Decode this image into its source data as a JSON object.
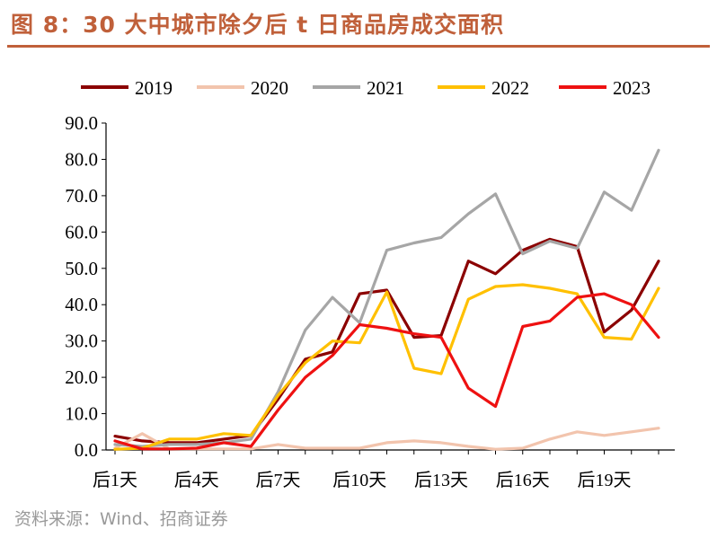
{
  "header": {
    "title": "图 8：30 大中城市除夕后 t 日商品房成交面积"
  },
  "footer": {
    "source": "资料来源：Wind、招商证券"
  },
  "chart_data": {
    "type": "line",
    "title": "图 8：30 大中城市除夕后 t 日商品房成交面积",
    "xlabel": "",
    "ylabel": "",
    "ylim": [
      0,
      90
    ],
    "yticks": [
      "0.0",
      "10.0",
      "20.0",
      "30.0",
      "40.0",
      "50.0",
      "60.0",
      "70.0",
      "80.0",
      "90.0"
    ],
    "x": [
      1,
      2,
      3,
      4,
      5,
      6,
      7,
      8,
      9,
      10,
      11,
      12,
      13,
      14,
      15,
      16,
      17,
      18,
      19,
      20,
      21
    ],
    "xtick_labels": [
      {
        "x": 1,
        "label": "后1天"
      },
      {
        "x": 4,
        "label": "后4天"
      },
      {
        "x": 7,
        "label": "后7天"
      },
      {
        "x": 10,
        "label": "后10天"
      },
      {
        "x": 13,
        "label": "后13天"
      },
      {
        "x": 16,
        "label": "后16天"
      },
      {
        "x": 19,
        "label": "后19天"
      }
    ],
    "grid": false,
    "legend_position": "top",
    "series": [
      {
        "name": "2019",
        "color": "#8b0000",
        "values": [
          3.8,
          2.5,
          2.0,
          2.0,
          3.0,
          4.0,
          14.0,
          25.0,
          27.0,
          43.0,
          44.0,
          31.0,
          31.5,
          52.0,
          48.5,
          55.0,
          58.0,
          56.0,
          32.5,
          38.5,
          52.0
        ]
      },
      {
        "name": "2020",
        "color": "#f2c4ad",
        "values": [
          0.5,
          4.5,
          0.3,
          0.3,
          0.3,
          0.3,
          1.5,
          0.5,
          0.5,
          0.5,
          2.0,
          2.5,
          2.0,
          1.0,
          0.2,
          0.5,
          3.0,
          5.0,
          4.0,
          5.0,
          6.0
        ]
      },
      {
        "name": "2021",
        "color": "#a6a6a6",
        "values": [
          1.5,
          1.0,
          1.5,
          1.5,
          2.0,
          3.0,
          16.0,
          33.0,
          42.0,
          35.0,
          55.0,
          57.0,
          58.5,
          65.0,
          70.5,
          54.0,
          57.5,
          55.5,
          71.0,
          66.0,
          82.5
        ]
      },
      {
        "name": "2022",
        "color": "#ffc000",
        "values": [
          0.2,
          0.5,
          3.0,
          3.0,
          4.5,
          4.0,
          15.0,
          24.0,
          30.0,
          29.5,
          43.5,
          22.5,
          21.0,
          41.5,
          45.0,
          45.5,
          44.5,
          43.0,
          31.0,
          30.5,
          44.5
        ]
      },
      {
        "name": "2023",
        "color": "#ee1111",
        "values": [
          2.5,
          0.3,
          0.3,
          0.5,
          2.0,
          1.0,
          11.0,
          20.0,
          26.0,
          34.5,
          33.5,
          32.0,
          31.0,
          17.0,
          12.0,
          34.0,
          35.5,
          42.0,
          43.0,
          40.0,
          31.0
        ]
      }
    ]
  }
}
